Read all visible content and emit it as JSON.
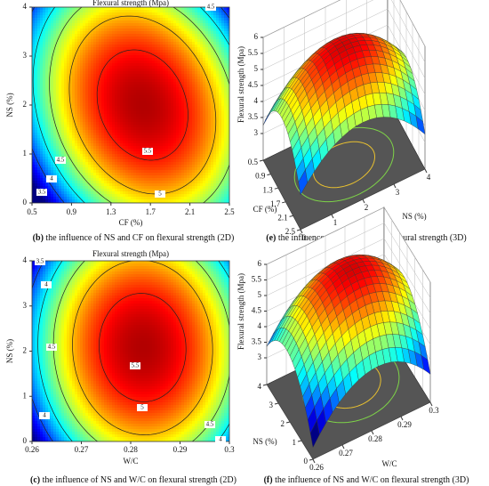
{
  "chart_data": [
    {
      "type": "contour",
      "title": "Flexural strength (Mpa)",
      "xlabel": "CF (%)",
      "ylabel": "NS (%)",
      "xlim": [
        0.5,
        2.5
      ],
      "xticks": [
        0.5,
        0.9,
        1.3,
        1.7,
        2.1,
        2.5
      ],
      "ylim": [
        0,
        4
      ],
      "yticks": [
        0,
        1,
        2,
        3,
        4
      ],
      "contour_labels": [
        4.5,
        5.5,
        5,
        4.5,
        4,
        3.5
      ],
      "caption_tag": "(b)",
      "caption": "the influence of NS and CF on flexural strength (2D)"
    },
    {
      "type": "surface",
      "xlabel": "CF (%)",
      "ylabel": "NS (%)",
      "zlabel": "Flexural strength (Mpa)",
      "xlim": [
        0.5,
        2.5
      ],
      "xticks": [
        0.5,
        0.9,
        1.3,
        1.7,
        2.1,
        2.5
      ],
      "ylim": [
        0,
        4
      ],
      "yticks": [
        0,
        1,
        2,
        3,
        4
      ],
      "zlim": [
        3,
        6
      ],
      "zticks": [
        3,
        3.5,
        4,
        4.5,
        5,
        5.5,
        6
      ],
      "caption_tag": "(e)",
      "caption": "the influence of CF and NS on flexural strength (3D)"
    },
    {
      "type": "contour",
      "title": "Flexural strength (Mpa)",
      "xlabel": "W/C",
      "ylabel": "NS (%)",
      "xlim": [
        0.26,
        0.3
      ],
      "xticks": [
        0.26,
        0.27,
        0.28,
        0.29,
        0.3
      ],
      "ylim": [
        0,
        4
      ],
      "yticks": [
        0,
        1,
        2,
        3,
        4
      ],
      "contour_labels": [
        3.5,
        4,
        4.5,
        5.5,
        5,
        4,
        4.5,
        4
      ],
      "caption_tag": "(c)",
      "caption": "the influence of NS and W/C on flexural strength (2D)"
    },
    {
      "type": "surface",
      "xlabel": "NS (%)",
      "ylabel": "W/C",
      "zlabel": "Flexural strength (Mpa)",
      "xlim": [
        0,
        4
      ],
      "xticks": [
        0,
        1,
        2,
        3,
        4
      ],
      "ylim": [
        0.26,
        0.3
      ],
      "yticks": [
        0.26,
        0.27,
        0.28,
        0.29,
        0.3
      ],
      "zlim": [
        3,
        6
      ],
      "zticks": [
        3,
        3.5,
        4,
        4.5,
        5,
        5.5,
        6
      ],
      "caption_tag": "(f)",
      "caption": "the influence of NS and W/C on flexural strength (3D)"
    }
  ]
}
